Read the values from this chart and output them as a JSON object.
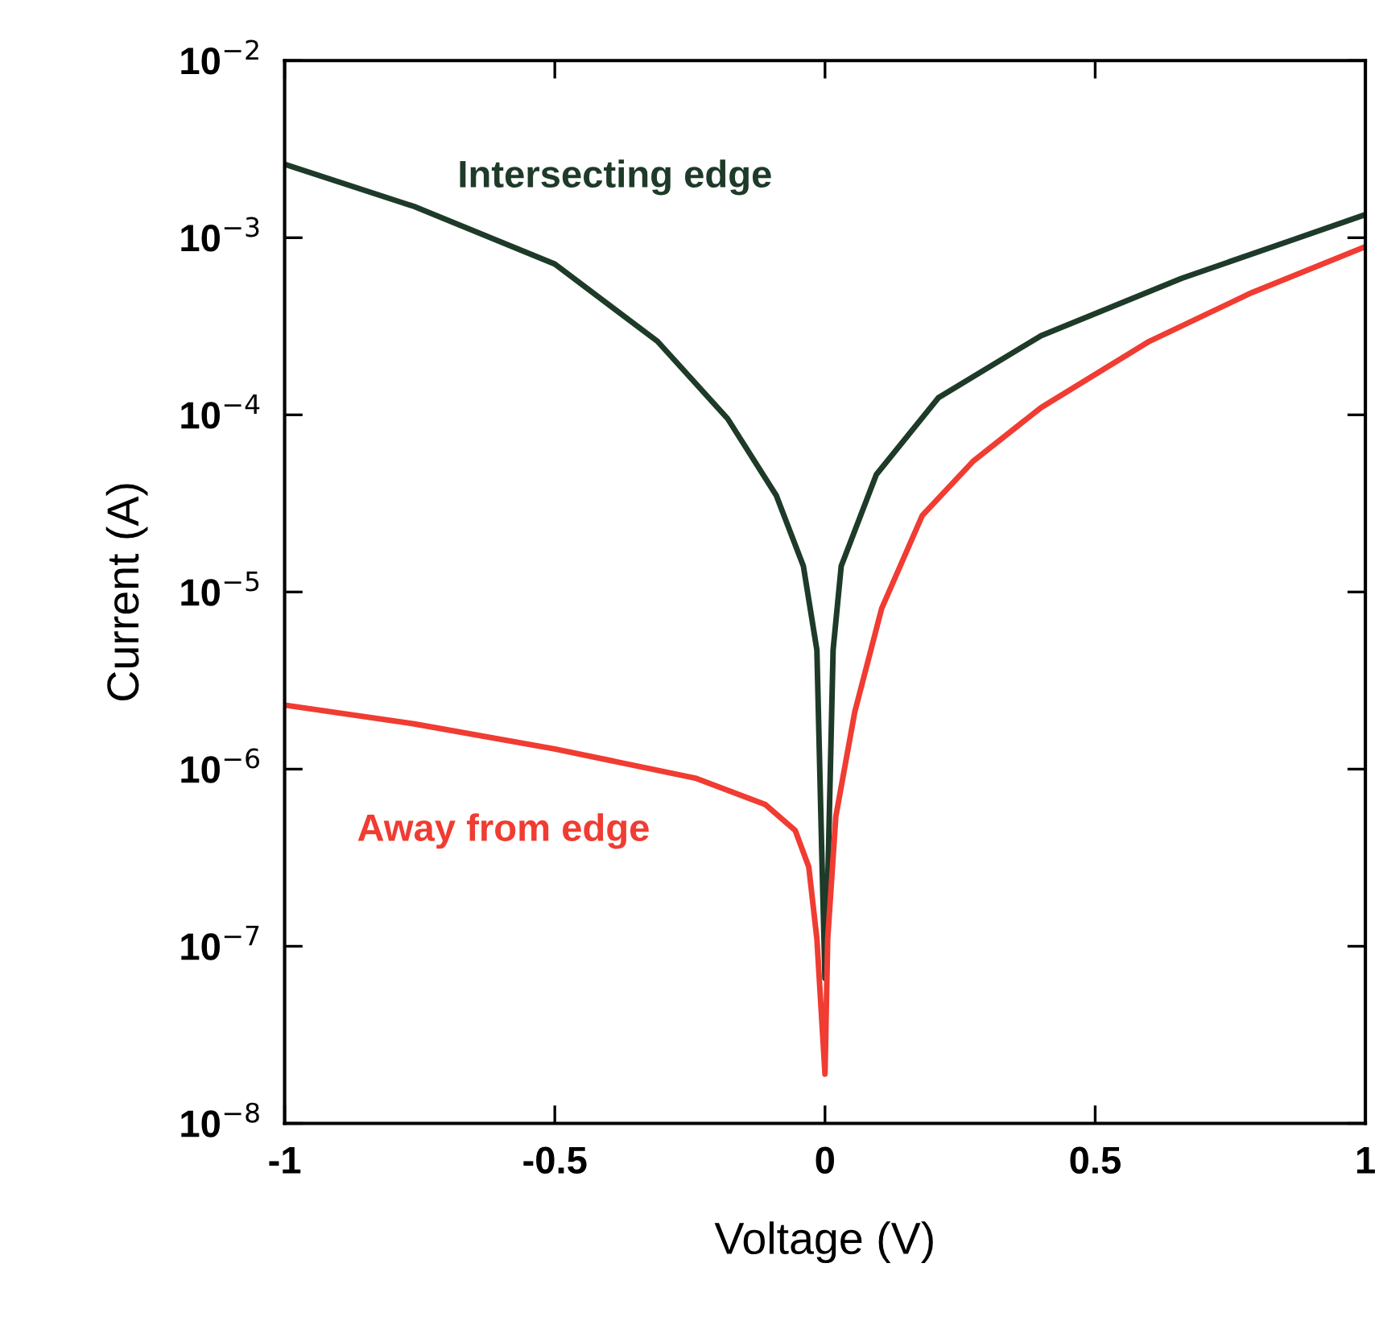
{
  "chart_data": {
    "type": "line",
    "xlabel": "Voltage (V)",
    "ylabel": "Current (A)",
    "log": "y",
    "xlim": [
      -1,
      1
    ],
    "xticks": [
      {
        "value": -1,
        "label": "-1"
      },
      {
        "value": -0.5,
        "label": "-0.5"
      },
      0,
      {
        "value": 0.5,
        "label": "0.5"
      },
      1
    ],
    "ylim": [
      1e-08,
      0.01
    ],
    "yticks": [
      {
        "value": 1e-08,
        "label": "10$^{−8}$"
      },
      {
        "value": 1e-07,
        "label": "10$^{−7}$"
      },
      {
        "value": 1e-06,
        "label": "10$^{−6}$"
      },
      {
        "value": 1e-05,
        "label": "10$^{−5}$"
      },
      {
        "value": 0.0001,
        "label": "10$^{−4}$"
      },
      {
        "value": 0.001,
        "label": "10$^{−3}$"
      },
      {
        "value": 0.01,
        "label": "10$^{−2}$"
      }
    ],
    "grid": false,
    "legend": false,
    "marker": "none",
    "line_style": "solid",
    "series": [
      {
        "name": "Intersecting edge",
        "color": "#1e3a28",
        "x": [
          -1,
          -0.76,
          -0.5,
          -0.31,
          -0.18,
          -0.09,
          -0.04,
          -0.015,
          -0.006,
          0,
          0.006,
          0.015,
          0.03,
          0.095,
          0.21,
          0.4,
          0.66,
          0.86,
          1
        ],
        "values": [
          0.0026,
          0.0015,
          0.00071,
          0.00026,
          9.5e-05,
          3.5e-05,
          1.4e-05,
          4.7e-06,
          3.4e-07,
          6.6e-08,
          3e-07,
          4.7e-06,
          1.4e-05,
          4.6e-05,
          0.000125,
          0.00028,
          0.00059,
          0.00096,
          0.00135
        ]
      },
      {
        "name": "Away from edge",
        "color": "#f03c32",
        "x": [
          -1,
          -0.76,
          -0.5,
          -0.24,
          -0.11,
          -0.055,
          -0.03,
          -0.015,
          0,
          0.005,
          0.02,
          0.055,
          0.105,
          0.18,
          0.275,
          0.4,
          0.6,
          0.79,
          1
        ],
        "values": [
          2.3e-06,
          1.8e-06,
          1.3e-06,
          8.9e-07,
          6.3e-07,
          4.5e-07,
          2.8e-07,
          1.1e-07,
          1.9e-08,
          1.1e-07,
          5.4e-07,
          2.1e-06,
          8.1e-06,
          2.7e-05,
          5.5e-05,
          0.00011,
          0.00026,
          0.00049,
          0.00089
        ]
      }
    ]
  }
}
